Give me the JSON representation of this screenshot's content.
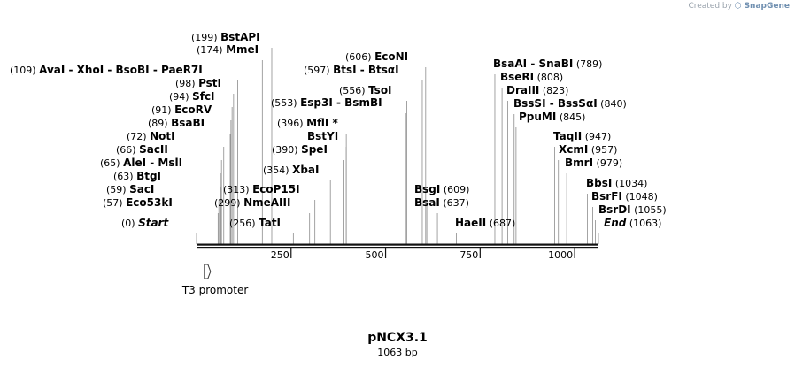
{
  "credit": {
    "prefix": "Created by",
    "brand": "SnapGene"
  },
  "title": "pNCX3.1",
  "subtitle": "1063 bp",
  "sequence_length": 1063,
  "ruler_ticks": [
    250,
    500,
    750,
    1000
  ],
  "features": [
    {
      "name": "T3 promoter",
      "start": 23,
      "end": 41,
      "direction": "forward"
    }
  ],
  "labels": [
    {
      "pos": "(0)",
      "text": "Start",
      "style": "italic",
      "site": 0
    },
    {
      "pos": "(57)",
      "text": "Eco53kI",
      "style": "bold",
      "site": 57
    },
    {
      "pos": "(59)",
      "text": "SacI",
      "style": "bold",
      "site": 59
    },
    {
      "pos": "(63)",
      "text": "BtgI",
      "style": "bold",
      "site": 63
    },
    {
      "pos": "(65)",
      "text": "AleI  - MslI",
      "style": "bold",
      "site": 65
    },
    {
      "pos": "(66)",
      "text": "SacII",
      "style": "bold",
      "site": 66
    },
    {
      "pos": "(72)",
      "text": "NotI",
      "style": "bold",
      "site": 72
    },
    {
      "pos": "(89)",
      "text": "BsaBI",
      "style": "bold",
      "site": 89
    },
    {
      "pos": "(91)",
      "text": "EcoRV",
      "style": "bold",
      "site": 91
    },
    {
      "pos": "(94)",
      "text": "SfcI",
      "style": "bold",
      "site": 94
    },
    {
      "pos": "(98)",
      "text": "PstI",
      "style": "bold",
      "site": 98
    },
    {
      "pos": "(109)",
      "text": "AvaI  - XhoI  - BsoBI  - PaeR7I",
      "style": "bold",
      "site": 109
    },
    {
      "pos": "(174)",
      "text": "MmeI",
      "style": "bold",
      "site": 174
    },
    {
      "pos": "(199)",
      "text": "BstAPI",
      "style": "bold",
      "site": 199
    },
    {
      "pos": "(256)",
      "text": "TatI",
      "style": "bold",
      "site": 256
    },
    {
      "pos": "(299)",
      "text": "NmeAIII",
      "style": "bold",
      "site": 299
    },
    {
      "pos": "(313)",
      "text": "EcoP15I",
      "style": "bold",
      "site": 313
    },
    {
      "pos": "(354)",
      "text": "XbaI",
      "style": "bold",
      "site": 354
    },
    {
      "pos": "(390)",
      "text": "SpeI",
      "style": "bold",
      "site": 390
    },
    {
      "pos": "",
      "text": "BstYI",
      "style": "bold",
      "site": 396
    },
    {
      "pos": "(396)",
      "text": "MflI *",
      "style": "bold",
      "site": 396
    },
    {
      "pos": "(553)",
      "text": "Esp3I  - BsmBI",
      "style": "bold",
      "site": 553
    },
    {
      "pos": "(556)",
      "text": "TsoI",
      "style": "bold",
      "site": 556
    },
    {
      "pos": "(597)",
      "text": "BtsI  - BtsαI",
      "style": "bold",
      "site": 597
    },
    {
      "pos": "(606)",
      "text": "EcoNI",
      "style": "bold",
      "site": 606
    },
    {
      "pos": "(609)",
      "text": "BsgI",
      "style": "bold",
      "site": 609
    },
    {
      "pos": "(637)",
      "text": "BsaI",
      "style": "bold",
      "site": 637
    },
    {
      "pos": "(687)",
      "text": "HaeII",
      "style": "bold",
      "site": 687
    },
    {
      "pos": "(789)",
      "text": "BsaAI  - SnaBI",
      "style": "bold",
      "site": 789
    },
    {
      "pos": "(808)",
      "text": "BseRI",
      "style": "bold",
      "site": 808
    },
    {
      "pos": "(823)",
      "text": "DraIII",
      "style": "bold",
      "site": 823
    },
    {
      "pos": "(840)",
      "text": "BssSI  - BssSαI",
      "style": "bold",
      "site": 840
    },
    {
      "pos": "(845)",
      "text": "PpuMI",
      "style": "bold",
      "site": 845
    },
    {
      "pos": "(947)",
      "text": "TaqII",
      "style": "bold",
      "site": 947
    },
    {
      "pos": "(957)",
      "text": "XcmI",
      "style": "bold",
      "site": 957
    },
    {
      "pos": "(979)",
      "text": "BmrI",
      "style": "bold",
      "site": 979
    },
    {
      "pos": "(1034)",
      "text": "BbsI",
      "style": "bold",
      "site": 1034
    },
    {
      "pos": "(1048)",
      "text": "BsrFI",
      "style": "bold",
      "site": 1048
    },
    {
      "pos": "(1055)",
      "text": "BsrDI",
      "style": "bold",
      "site": 1055
    },
    {
      "pos": "(1063)",
      "text": "End",
      "style": "italic",
      "site": 1063
    }
  ]
}
